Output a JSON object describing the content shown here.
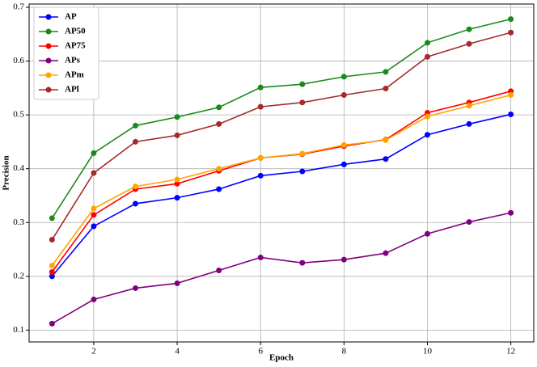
{
  "chart_data": {
    "type": "line",
    "x_label": "Epoch",
    "y_label": "Precision",
    "x": [
      1,
      2,
      3,
      4,
      5,
      6,
      7,
      8,
      9,
      10,
      11,
      12
    ],
    "series": [
      {
        "name": "AP",
        "color": "#0000ff",
        "values": [
          0.2,
          0.293,
          0.335,
          0.346,
          0.362,
          0.387,
          0.395,
          0.408,
          0.418,
          0.463,
          0.483,
          0.501
        ]
      },
      {
        "name": "AP50",
        "color": "#1a8a1a",
        "values": [
          0.308,
          0.429,
          0.48,
          0.496,
          0.514,
          0.551,
          0.557,
          0.571,
          0.58,
          0.634,
          0.659,
          0.678
        ]
      },
      {
        "name": "AP75",
        "color": "#ff0000",
        "values": [
          0.208,
          0.314,
          0.362,
          0.372,
          0.396,
          0.42,
          0.427,
          0.442,
          0.454,
          0.504,
          0.523,
          0.544
        ]
      },
      {
        "name": "APs",
        "color": "#800080",
        "values": [
          0.112,
          0.157,
          0.178,
          0.187,
          0.211,
          0.235,
          0.225,
          0.231,
          0.243,
          0.279,
          0.301,
          0.318
        ]
      },
      {
        "name": "APm",
        "color": "#ffa500",
        "values": [
          0.22,
          0.326,
          0.367,
          0.38,
          0.4,
          0.42,
          0.428,
          0.444,
          0.453,
          0.497,
          0.517,
          0.537
        ]
      },
      {
        "name": "APl",
        "color": "#a52a2a",
        "values": [
          0.268,
          0.392,
          0.45,
          0.462,
          0.483,
          0.515,
          0.523,
          0.537,
          0.549,
          0.608,
          0.632,
          0.653
        ]
      }
    ],
    "xlim": [
      0.45,
      12.55
    ],
    "ylim": [
      0.078,
      0.706
    ],
    "xticks": [
      2,
      4,
      6,
      8,
      10,
      12
    ],
    "yticks": [
      0.1,
      0.2,
      0.3,
      0.4,
      0.5,
      0.6,
      0.7
    ],
    "grid": true,
    "legend": "upper-left"
  }
}
